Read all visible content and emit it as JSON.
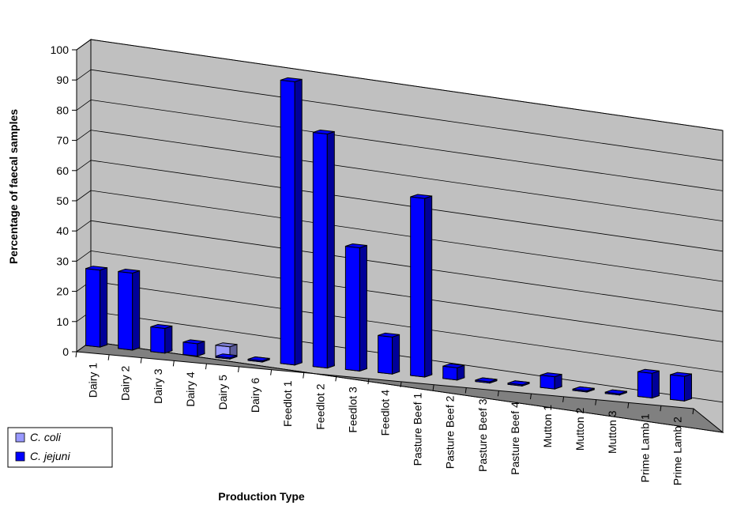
{
  "chart_data": {
    "type": "bar",
    "title": "",
    "xlabel": "Production Type",
    "ylabel": "Percentage of faecal samples",
    "ylim": [
      0,
      100
    ],
    "yticks": [
      0,
      10,
      20,
      30,
      40,
      50,
      60,
      70,
      80,
      90,
      100
    ],
    "grid": true,
    "legend_position": "bottom-left",
    "categories": [
      "Dairy 1",
      "Dairy 2",
      "Dairy 3",
      "Dairy 4",
      "Dairy 5",
      "Dairy 6",
      "Feedlot 1",
      "Feedlot 2",
      "Feedlot 3",
      "Feedlot 4",
      "Pasture Beef 1",
      "Pasture Beef 2",
      "Pasture Beef 3",
      "Pasture Beef 4",
      "Mutton 1",
      "Mutton 2",
      "Mutton 3",
      "Prime Lamb 1",
      "Prime Lamb 2"
    ],
    "series": [
      {
        "name": "C. coli",
        "color": "#9999ff",
        "values": [
          0,
          0,
          0,
          0,
          4,
          0,
          0,
          0,
          0,
          0,
          0,
          0,
          0,
          0,
          0,
          0,
          0,
          0,
          0
        ]
      },
      {
        "name": "C. jejuni",
        "color": "#0000ff",
        "values": [
          25,
          25,
          8,
          4,
          0,
          0,
          92,
          76,
          40,
          12,
          58,
          4,
          0,
          0,
          4,
          0,
          0,
          8,
          8
        ]
      }
    ]
  }
}
